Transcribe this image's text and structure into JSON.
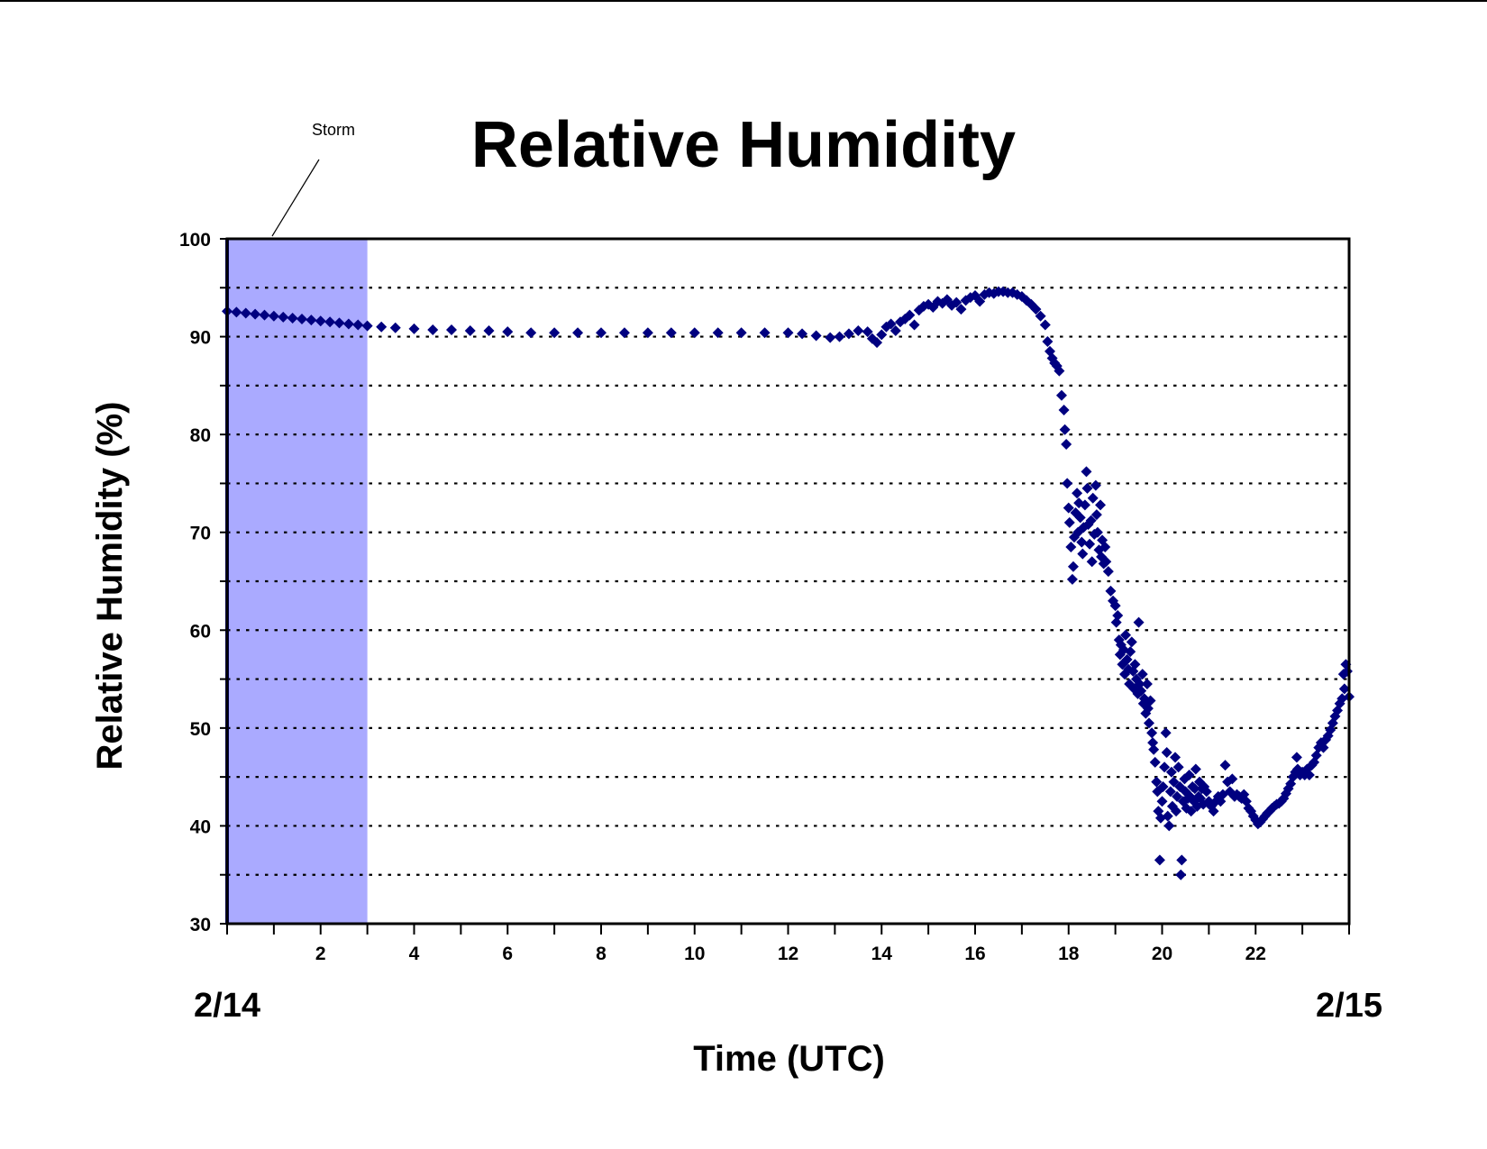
{
  "chart_data": {
    "type": "scatter",
    "title": "Relative Humidity",
    "xlabel": "Time (UTC)",
    "ylabel": "Relative Humidity (%)",
    "start_date_label": "2/14",
    "end_date_label": "2/15",
    "xlim": [
      0,
      24
    ],
    "ylim": [
      30,
      100
    ],
    "x_tick_labels": [
      "2",
      "4",
      "6",
      "8",
      "10",
      "12",
      "14",
      "16",
      "18",
      "20",
      "22"
    ],
    "x_tick_values": [
      2,
      4,
      6,
      8,
      10,
      12,
      14,
      16,
      18,
      20,
      22
    ],
    "y_tick_labels": [
      "30",
      "40",
      "50",
      "60",
      "70",
      "80",
      "90",
      "100"
    ],
    "y_tick_values": [
      30,
      40,
      50,
      60,
      70,
      80,
      90,
      100
    ],
    "grid": "dotted horizontal lines every 5%",
    "marker": "diamond",
    "colors": {
      "series": "#000080",
      "storm_band": "#aaaaff",
      "grid": "#000000"
    },
    "annotation": {
      "text": "Storm",
      "x_start": 0,
      "x_end": 3
    },
    "series": [
      {
        "points": [
          [
            0.0,
            92.6
          ],
          [
            0.2,
            92.5
          ],
          [
            0.4,
            92.4
          ],
          [
            0.6,
            92.3
          ],
          [
            0.8,
            92.2
          ],
          [
            1.0,
            92.1
          ],
          [
            1.2,
            92.0
          ],
          [
            1.4,
            91.9
          ],
          [
            1.6,
            91.8
          ],
          [
            1.8,
            91.7
          ],
          [
            2.0,
            91.6
          ],
          [
            2.2,
            91.5
          ],
          [
            2.4,
            91.4
          ],
          [
            2.6,
            91.3
          ],
          [
            2.8,
            91.2
          ],
          [
            3.0,
            91.1
          ],
          [
            3.3,
            91.0
          ],
          [
            3.6,
            90.9
          ],
          [
            4.0,
            90.8
          ],
          [
            4.4,
            90.7
          ],
          [
            4.8,
            90.7
          ],
          [
            5.2,
            90.6
          ],
          [
            5.6,
            90.6
          ],
          [
            6.0,
            90.5
          ],
          [
            6.5,
            90.4
          ],
          [
            7.0,
            90.4
          ],
          [
            7.5,
            90.4
          ],
          [
            8.0,
            90.4
          ],
          [
            8.5,
            90.4
          ],
          [
            9.0,
            90.4
          ],
          [
            9.5,
            90.4
          ],
          [
            10.0,
            90.4
          ],
          [
            10.5,
            90.4
          ],
          [
            11.0,
            90.4
          ],
          [
            11.5,
            90.4
          ],
          [
            12.0,
            90.4
          ],
          [
            12.3,
            90.3
          ],
          [
            12.6,
            90.1
          ],
          [
            12.9,
            89.9
          ],
          [
            13.1,
            90.0
          ],
          [
            13.3,
            90.3
          ],
          [
            13.5,
            90.6
          ],
          [
            13.7,
            90.5
          ],
          [
            13.8,
            89.8
          ],
          [
            13.9,
            89.4
          ],
          [
            14.0,
            90.2
          ],
          [
            14.1,
            91.0
          ],
          [
            14.2,
            91.3
          ],
          [
            14.3,
            90.6
          ],
          [
            14.4,
            91.5
          ],
          [
            14.5,
            91.8
          ],
          [
            14.6,
            92.2
          ],
          [
            14.7,
            91.2
          ],
          [
            14.8,
            92.7
          ],
          [
            14.9,
            93.1
          ],
          [
            15.0,
            93.3
          ],
          [
            15.1,
            93.0
          ],
          [
            15.2,
            93.6
          ],
          [
            15.3,
            93.4
          ],
          [
            15.4,
            93.8
          ],
          [
            15.5,
            93.2
          ],
          [
            15.6,
            93.5
          ],
          [
            15.7,
            92.8
          ],
          [
            15.8,
            93.7
          ],
          [
            15.9,
            94.0
          ],
          [
            16.0,
            94.2
          ],
          [
            16.1,
            93.6
          ],
          [
            16.2,
            94.3
          ],
          [
            16.3,
            94.5
          ],
          [
            16.4,
            94.4
          ],
          [
            16.5,
            94.6
          ],
          [
            16.6,
            94.6
          ],
          [
            16.7,
            94.5
          ],
          [
            16.8,
            94.5
          ],
          [
            16.9,
            94.3
          ],
          [
            17.0,
            94.1
          ],
          [
            17.1,
            93.7
          ],
          [
            17.2,
            93.3
          ],
          [
            17.3,
            92.8
          ],
          [
            17.4,
            92.1
          ],
          [
            17.5,
            91.2
          ],
          [
            17.55,
            89.5
          ],
          [
            17.6,
            88.5
          ],
          [
            17.65,
            87.8
          ],
          [
            17.7,
            87.3
          ],
          [
            17.75,
            87.0
          ],
          [
            17.8,
            86.5
          ],
          [
            17.85,
            84.0
          ],
          [
            17.9,
            82.5
          ],
          [
            17.92,
            80.5
          ],
          [
            17.95,
            79.0
          ],
          [
            17.97,
            75.0
          ],
          [
            18.0,
            72.5
          ],
          [
            18.02,
            71.0
          ],
          [
            18.05,
            68.5
          ],
          [
            18.08,
            65.2
          ],
          [
            18.1,
            66.5
          ],
          [
            18.12,
            69.5
          ],
          [
            18.15,
            72.0
          ],
          [
            18.18,
            74.0
          ],
          [
            18.2,
            70.0
          ],
          [
            18.22,
            73.0
          ],
          [
            18.25,
            71.5
          ],
          [
            18.28,
            69.0
          ],
          [
            18.3,
            67.8
          ],
          [
            18.32,
            70.5
          ],
          [
            18.35,
            72.8
          ],
          [
            18.38,
            76.2
          ],
          [
            18.4,
            74.5
          ],
          [
            18.42,
            70.8
          ],
          [
            18.45,
            68.8
          ],
          [
            18.48,
            71.2
          ],
          [
            18.5,
            67.0
          ],
          [
            18.52,
            73.5
          ],
          [
            18.55,
            69.8
          ],
          [
            18.58,
            74.8
          ],
          [
            18.6,
            71.8
          ],
          [
            18.62,
            70.0
          ],
          [
            18.65,
            68.2
          ],
          [
            18.68,
            72.8
          ],
          [
            18.7,
            67.5
          ],
          [
            18.72,
            69.2
          ],
          [
            18.75,
            66.8
          ],
          [
            18.78,
            68.5
          ],
          [
            18.8,
            67.0
          ],
          [
            18.85,
            66.0
          ],
          [
            18.9,
            64.0
          ],
          [
            18.95,
            63.0
          ],
          [
            19.0,
            62.5
          ],
          [
            19.02,
            60.8
          ],
          [
            19.05,
            61.5
          ],
          [
            19.08,
            59.0
          ],
          [
            19.1,
            57.5
          ],
          [
            19.12,
            58.5
          ],
          [
            19.15,
            56.5
          ],
          [
            19.18,
            58.0
          ],
          [
            19.2,
            55.5
          ],
          [
            19.22,
            59.5
          ],
          [
            19.25,
            57.0
          ],
          [
            19.28,
            56.0
          ],
          [
            19.3,
            54.5
          ],
          [
            19.32,
            57.8
          ],
          [
            19.35,
            58.8
          ],
          [
            19.38,
            55.8
          ],
          [
            19.4,
            54.0
          ],
          [
            19.42,
            56.5
          ],
          [
            19.45,
            55.0
          ],
          [
            19.48,
            53.5
          ],
          [
            19.5,
            60.8
          ],
          [
            19.52,
            54.5
          ],
          [
            19.55,
            53.8
          ],
          [
            19.58,
            55.5
          ],
          [
            19.6,
            52.5
          ],
          [
            19.62,
            53.0
          ],
          [
            19.65,
            51.5
          ],
          [
            19.68,
            54.5
          ],
          [
            19.7,
            52.0
          ],
          [
            19.72,
            50.5
          ],
          [
            19.75,
            52.8
          ],
          [
            19.78,
            49.5
          ],
          [
            19.8,
            48.5
          ],
          [
            19.82,
            47.8
          ],
          [
            19.85,
            46.5
          ],
          [
            19.88,
            44.5
          ],
          [
            19.9,
            43.5
          ],
          [
            19.92,
            41.5
          ],
          [
            19.95,
            36.5
          ],
          [
            19.97,
            40.8
          ],
          [
            20.0,
            42.5
          ],
          [
            20.02,
            44.0
          ],
          [
            20.05,
            46.0
          ],
          [
            20.08,
            49.5
          ],
          [
            20.1,
            47.5
          ],
          [
            20.12,
            41.0
          ],
          [
            20.15,
            40.0
          ],
          [
            20.18,
            43.5
          ],
          [
            20.2,
            45.5
          ],
          [
            20.22,
            42.0
          ],
          [
            20.25,
            44.5
          ],
          [
            20.28,
            47.0
          ],
          [
            20.3,
            41.5
          ],
          [
            20.32,
            43.0
          ],
          [
            20.35,
            46.0
          ],
          [
            20.38,
            44.0
          ],
          [
            20.4,
            35.0
          ],
          [
            20.42,
            36.5
          ],
          [
            20.45,
            42.5
          ],
          [
            20.48,
            44.8
          ],
          [
            20.5,
            43.5
          ],
          [
            20.52,
            41.8
          ],
          [
            20.55,
            42.8
          ],
          [
            20.58,
            45.2
          ],
          [
            20.6,
            43.0
          ],
          [
            20.62,
            41.5
          ],
          [
            20.65,
            44.0
          ],
          [
            20.68,
            42.5
          ],
          [
            20.7,
            43.8
          ],
          [
            20.72,
            45.8
          ],
          [
            20.75,
            42.0
          ],
          [
            20.78,
            43.0
          ],
          [
            20.8,
            44.5
          ],
          [
            20.82,
            42.8
          ],
          [
            20.85,
            43.8
          ],
          [
            20.88,
            42.2
          ],
          [
            20.9,
            44.0
          ],
          [
            20.95,
            43.5
          ],
          [
            21.0,
            42.5
          ],
          [
            21.05,
            42.0
          ],
          [
            21.1,
            41.5
          ],
          [
            21.15,
            42.5
          ],
          [
            21.2,
            43.0
          ],
          [
            21.25,
            42.5
          ],
          [
            21.3,
            43.2
          ],
          [
            21.35,
            46.2
          ],
          [
            21.4,
            44.5
          ],
          [
            21.45,
            43.5
          ],
          [
            21.5,
            44.8
          ],
          [
            21.55,
            43.0
          ],
          [
            21.6,
            43.2
          ],
          [
            21.65,
            43.0
          ],
          [
            21.7,
            42.8
          ],
          [
            21.75,
            43.2
          ],
          [
            21.8,
            42.5
          ],
          [
            21.85,
            41.8
          ],
          [
            21.9,
            41.5
          ],
          [
            21.95,
            41.0
          ],
          [
            22.0,
            40.6
          ],
          [
            22.05,
            40.2
          ],
          [
            22.1,
            40.4
          ],
          [
            22.15,
            40.7
          ],
          [
            22.2,
            41.0
          ],
          [
            22.25,
            41.3
          ],
          [
            22.3,
            41.5
          ],
          [
            22.35,
            41.8
          ],
          [
            22.4,
            42.0
          ],
          [
            22.45,
            42.2
          ],
          [
            22.5,
            42.3
          ],
          [
            22.55,
            42.5
          ],
          [
            22.6,
            42.8
          ],
          [
            22.65,
            43.3
          ],
          [
            22.7,
            43.8
          ],
          [
            22.75,
            44.3
          ],
          [
            22.8,
            45.0
          ],
          [
            22.85,
            45.5
          ],
          [
            22.88,
            47.0
          ],
          [
            22.9,
            45.8
          ],
          [
            22.95,
            45.2
          ],
          [
            23.0,
            45.5
          ],
          [
            23.05,
            45.2
          ],
          [
            23.1,
            45.8
          ],
          [
            23.15,
            45.2
          ],
          [
            23.2,
            46.2
          ],
          [
            23.25,
            46.5
          ],
          [
            23.3,
            47.2
          ],
          [
            23.35,
            48.0
          ],
          [
            23.4,
            48.5
          ],
          [
            23.45,
            48.0
          ],
          [
            23.5,
            48.8
          ],
          [
            23.55,
            49.2
          ],
          [
            23.6,
            49.8
          ],
          [
            23.65,
            50.5
          ],
          [
            23.7,
            51.2
          ],
          [
            23.75,
            51.8
          ],
          [
            23.8,
            52.5
          ],
          [
            23.85,
            53.0
          ],
          [
            23.88,
            55.5
          ],
          [
            23.9,
            54.0
          ],
          [
            23.93,
            56.5
          ],
          [
            23.96,
            55.8
          ],
          [
            24.0,
            53.2
          ]
        ]
      }
    ]
  }
}
